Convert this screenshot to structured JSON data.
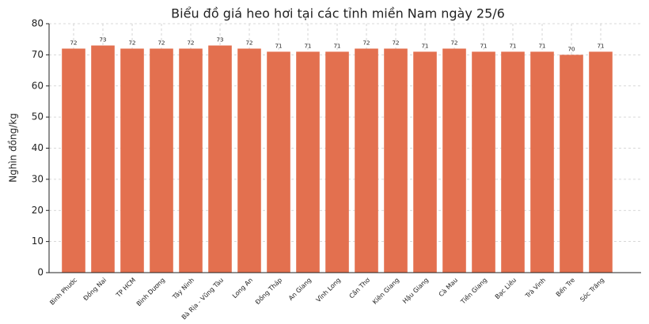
{
  "chart_data": {
    "type": "bar",
    "title": "Biểu đồ giá heo hơi tại các tỉnh miền Nam ngày 25/6",
    "y_label": "Nghìn đồng/kg",
    "categories": [
      "Bình Phước",
      "Đồng Nai",
      "TP HCM",
      "Bình Dương",
      "Tây Ninh",
      "Bà Rịa - Vũng Tàu",
      "Long An",
      "Đồng Tháp",
      "An Giang",
      "Vĩnh Long",
      "Cần Thơ",
      "Kiên Giang",
      "Hậu Giang",
      "Cà Mau",
      "Tiền Giang",
      "Bạc Liêu",
      "Trà Vinh",
      "Bến Tre",
      "Sóc Trăng"
    ],
    "values": [
      72,
      73,
      72,
      72,
      72,
      73,
      72,
      71,
      71,
      71,
      72,
      72,
      71,
      72,
      71,
      71,
      71,
      70,
      71
    ],
    "color": "#e3704f",
    "ylim": [
      0,
      80
    ],
    "yticks": [
      0,
      10,
      20,
      30,
      40,
      50,
      60,
      70,
      80
    ],
    "grid": true
  }
}
